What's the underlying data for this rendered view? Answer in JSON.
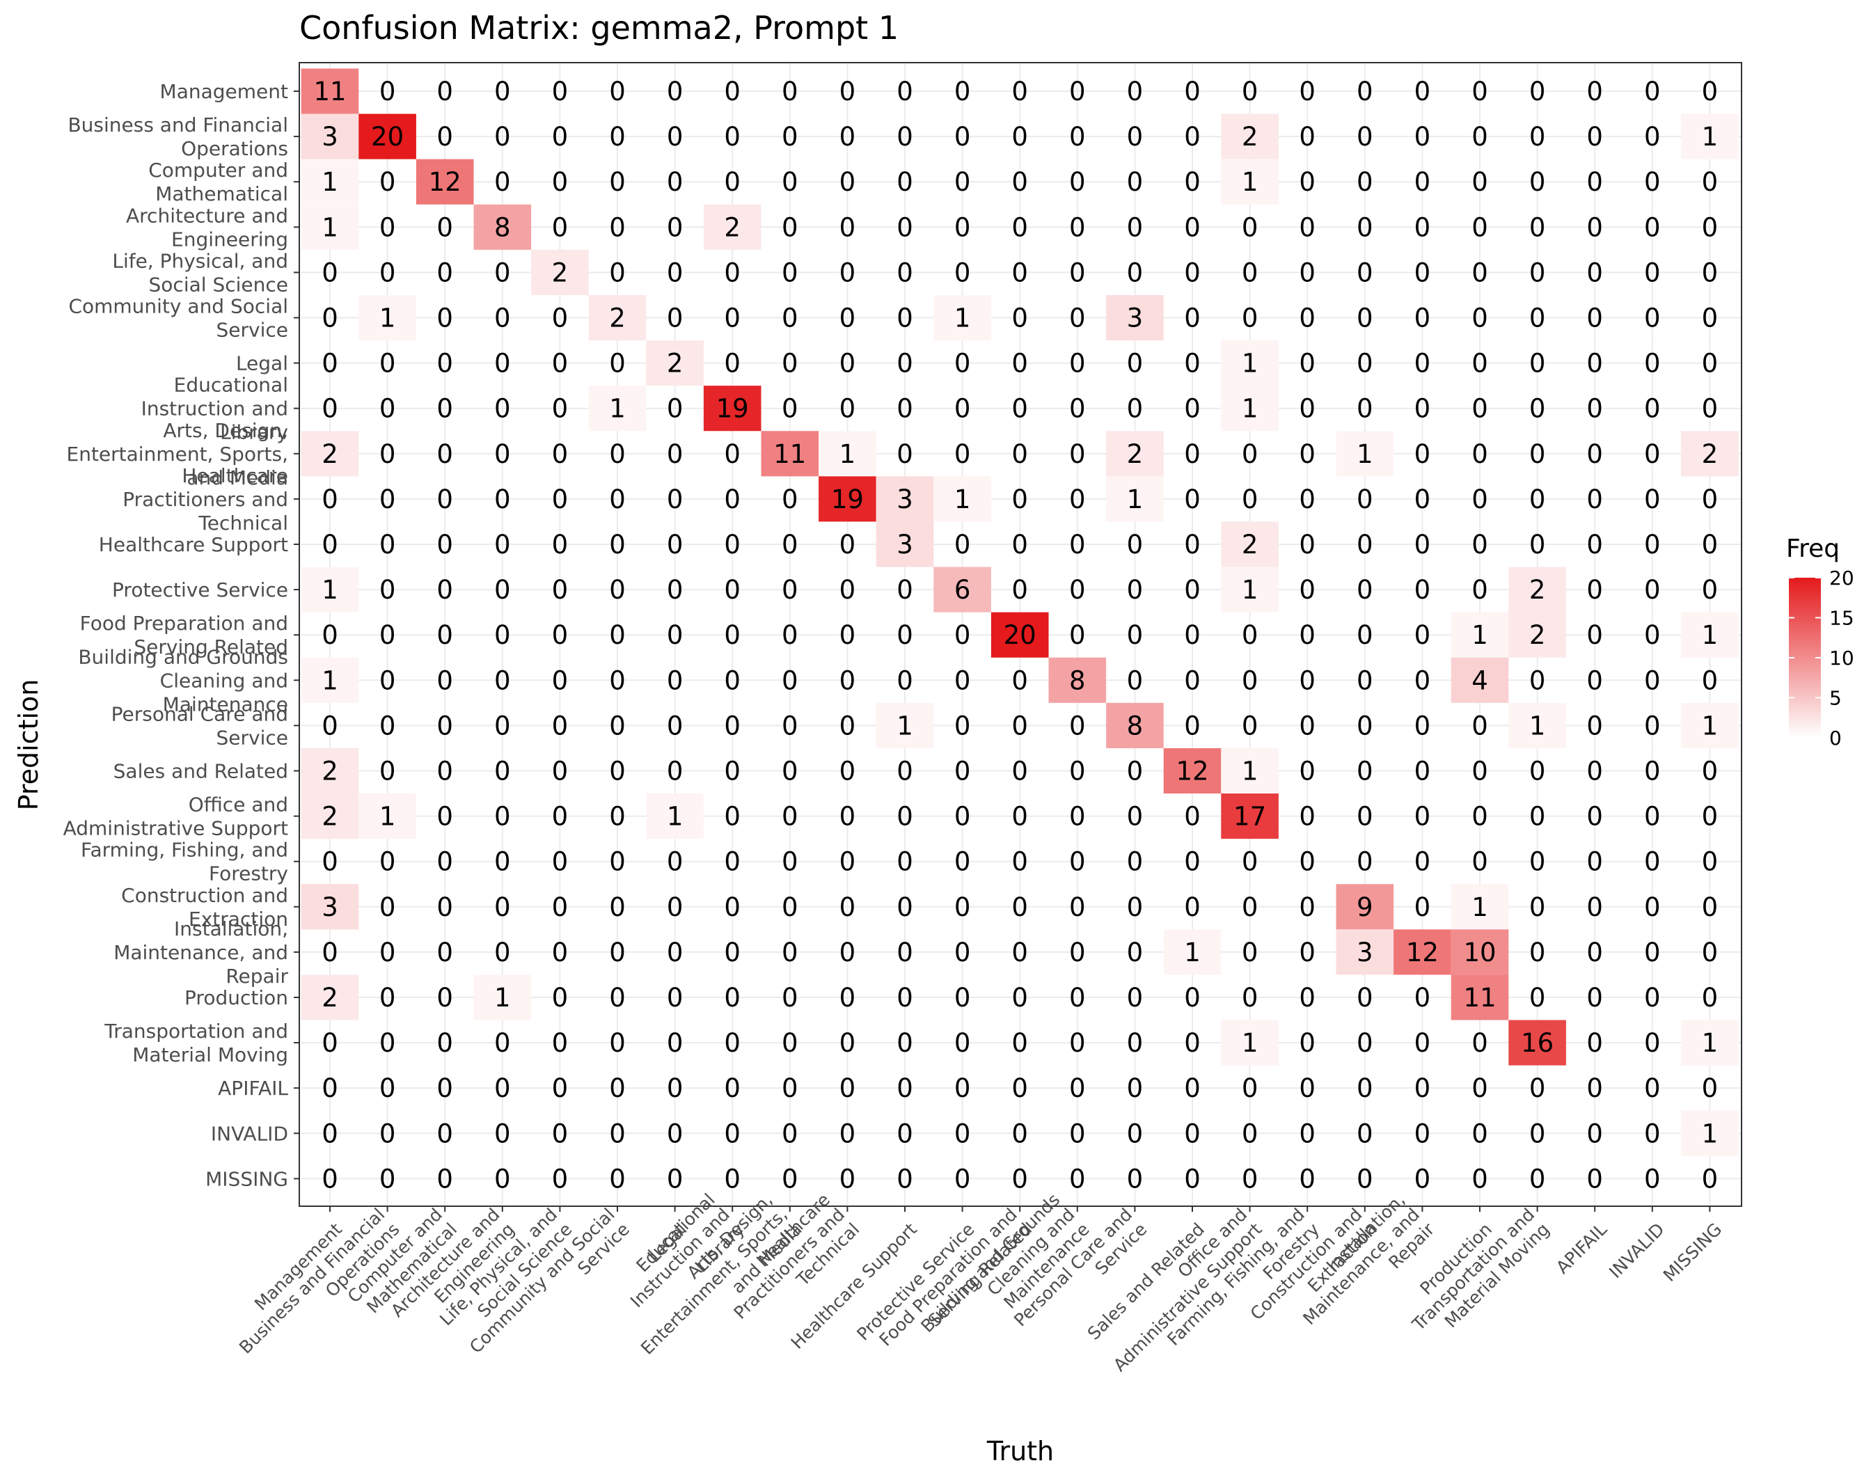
{
  "chart_data": {
    "type": "heatmap",
    "title": "Confusion Matrix: gemma2, Prompt 1",
    "xlabel": "Truth",
    "ylabel": "Prediction",
    "legend": {
      "title": "Freq",
      "ticks": [
        0,
        5,
        10,
        15,
        20
      ],
      "range": [
        0,
        20
      ],
      "position": "right",
      "colors": {
        "low": "#ffffff",
        "high": "#e41a1c"
      }
    },
    "grid": true,
    "categories": [
      "Management",
      "Business and Financial Operations",
      "Computer and Mathematical",
      "Architecture and Engineering",
      "Life, Physical, and Social Science",
      "Community and Social Service",
      "Legal",
      "Educational Instruction and Library",
      "Arts, Design, Entertainment, Sports, and Media",
      "Healthcare Practitioners and Technical",
      "Healthcare Support",
      "Protective Service",
      "Food Preparation and Serving Related",
      "Building and Grounds Cleaning and Maintenance",
      "Personal Care and Service",
      "Sales and Related",
      "Office and Administrative Support",
      "Farming, Fishing, and Forestry",
      "Construction and Extraction",
      "Installation, Maintenance, and Repair",
      "Production",
      "Transportation and Material Moving",
      "APIFAIL",
      "INVALID",
      "MISSING"
    ],
    "matrix_rows_are": "Prediction",
    "matrix_cols_are": "Truth",
    "matrix": [
      [
        11,
        0,
        0,
        0,
        0,
        0,
        0,
        0,
        0,
        0,
        0,
        0,
        0,
        0,
        0,
        0,
        0,
        0,
        0,
        0,
        0,
        0,
        0,
        0,
        0
      ],
      [
        3,
        20,
        0,
        0,
        0,
        0,
        0,
        0,
        0,
        0,
        0,
        0,
        0,
        0,
        0,
        0,
        2,
        0,
        0,
        0,
        0,
        0,
        0,
        0,
        1
      ],
      [
        1,
        0,
        12,
        0,
        0,
        0,
        0,
        0,
        0,
        0,
        0,
        0,
        0,
        0,
        0,
        0,
        1,
        0,
        0,
        0,
        0,
        0,
        0,
        0,
        0
      ],
      [
        1,
        0,
        0,
        8,
        0,
        0,
        0,
        2,
        0,
        0,
        0,
        0,
        0,
        0,
        0,
        0,
        0,
        0,
        0,
        0,
        0,
        0,
        0,
        0,
        0
      ],
      [
        0,
        0,
        0,
        0,
        2,
        0,
        0,
        0,
        0,
        0,
        0,
        0,
        0,
        0,
        0,
        0,
        0,
        0,
        0,
        0,
        0,
        0,
        0,
        0,
        0
      ],
      [
        0,
        1,
        0,
        0,
        0,
        2,
        0,
        0,
        0,
        0,
        0,
        1,
        0,
        0,
        3,
        0,
        0,
        0,
        0,
        0,
        0,
        0,
        0,
        0,
        0
      ],
      [
        0,
        0,
        0,
        0,
        0,
        0,
        2,
        0,
        0,
        0,
        0,
        0,
        0,
        0,
        0,
        0,
        1,
        0,
        0,
        0,
        0,
        0,
        0,
        0,
        0
      ],
      [
        0,
        0,
        0,
        0,
        0,
        1,
        0,
        19,
        0,
        0,
        0,
        0,
        0,
        0,
        0,
        0,
        1,
        0,
        0,
        0,
        0,
        0,
        0,
        0,
        0
      ],
      [
        2,
        0,
        0,
        0,
        0,
        0,
        0,
        0,
        11,
        1,
        0,
        0,
        0,
        0,
        2,
        0,
        0,
        0,
        1,
        0,
        0,
        0,
        0,
        0,
        2
      ],
      [
        0,
        0,
        0,
        0,
        0,
        0,
        0,
        0,
        0,
        19,
        3,
        1,
        0,
        0,
        1,
        0,
        0,
        0,
        0,
        0,
        0,
        0,
        0,
        0,
        0
      ],
      [
        0,
        0,
        0,
        0,
        0,
        0,
        0,
        0,
        0,
        0,
        3,
        0,
        0,
        0,
        0,
        0,
        2,
        0,
        0,
        0,
        0,
        0,
        0,
        0,
        0
      ],
      [
        1,
        0,
        0,
        0,
        0,
        0,
        0,
        0,
        0,
        0,
        0,
        6,
        0,
        0,
        0,
        0,
        1,
        0,
        0,
        0,
        0,
        2,
        0,
        0,
        0
      ],
      [
        0,
        0,
        0,
        0,
        0,
        0,
        0,
        0,
        0,
        0,
        0,
        0,
        20,
        0,
        0,
        0,
        0,
        0,
        0,
        0,
        1,
        2,
        0,
        0,
        1
      ],
      [
        1,
        0,
        0,
        0,
        0,
        0,
        0,
        0,
        0,
        0,
        0,
        0,
        0,
        8,
        0,
        0,
        0,
        0,
        0,
        0,
        4,
        0,
        0,
        0,
        0
      ],
      [
        0,
        0,
        0,
        0,
        0,
        0,
        0,
        0,
        0,
        0,
        1,
        0,
        0,
        0,
        8,
        0,
        0,
        0,
        0,
        0,
        0,
        1,
        0,
        0,
        1
      ],
      [
        2,
        0,
        0,
        0,
        0,
        0,
        0,
        0,
        0,
        0,
        0,
        0,
        0,
        0,
        0,
        12,
        1,
        0,
        0,
        0,
        0,
        0,
        0,
        0,
        0
      ],
      [
        2,
        1,
        0,
        0,
        0,
        0,
        1,
        0,
        0,
        0,
        0,
        0,
        0,
        0,
        0,
        0,
        17,
        0,
        0,
        0,
        0,
        0,
        0,
        0,
        0
      ],
      [
        0,
        0,
        0,
        0,
        0,
        0,
        0,
        0,
        0,
        0,
        0,
        0,
        0,
        0,
        0,
        0,
        0,
        0,
        0,
        0,
        0,
        0,
        0,
        0,
        0
      ],
      [
        3,
        0,
        0,
        0,
        0,
        0,
        0,
        0,
        0,
        0,
        0,
        0,
        0,
        0,
        0,
        0,
        0,
        0,
        9,
        0,
        1,
        0,
        0,
        0,
        0
      ],
      [
        0,
        0,
        0,
        0,
        0,
        0,
        0,
        0,
        0,
        0,
        0,
        0,
        0,
        0,
        0,
        1,
        0,
        0,
        3,
        12,
        10,
        0,
        0,
        0,
        0
      ],
      [
        2,
        0,
        0,
        1,
        0,
        0,
        0,
        0,
        0,
        0,
        0,
        0,
        0,
        0,
        0,
        0,
        0,
        0,
        0,
        0,
        11,
        0,
        0,
        0,
        0
      ],
      [
        0,
        0,
        0,
        0,
        0,
        0,
        0,
        0,
        0,
        0,
        0,
        0,
        0,
        0,
        0,
        0,
        1,
        0,
        0,
        0,
        0,
        16,
        0,
        0,
        1
      ],
      [
        0,
        0,
        0,
        0,
        0,
        0,
        0,
        0,
        0,
        0,
        0,
        0,
        0,
        0,
        0,
        0,
        0,
        0,
        0,
        0,
        0,
        0,
        0,
        0,
        0
      ],
      [
        0,
        0,
        0,
        0,
        0,
        0,
        0,
        0,
        0,
        0,
        0,
        0,
        0,
        0,
        0,
        0,
        0,
        0,
        0,
        0,
        0,
        0,
        0,
        0,
        1
      ],
      [
        0,
        0,
        0,
        0,
        0,
        0,
        0,
        0,
        0,
        0,
        0,
        0,
        0,
        0,
        0,
        0,
        0,
        0,
        0,
        0,
        0,
        0,
        0,
        0,
        0
      ]
    ]
  }
}
